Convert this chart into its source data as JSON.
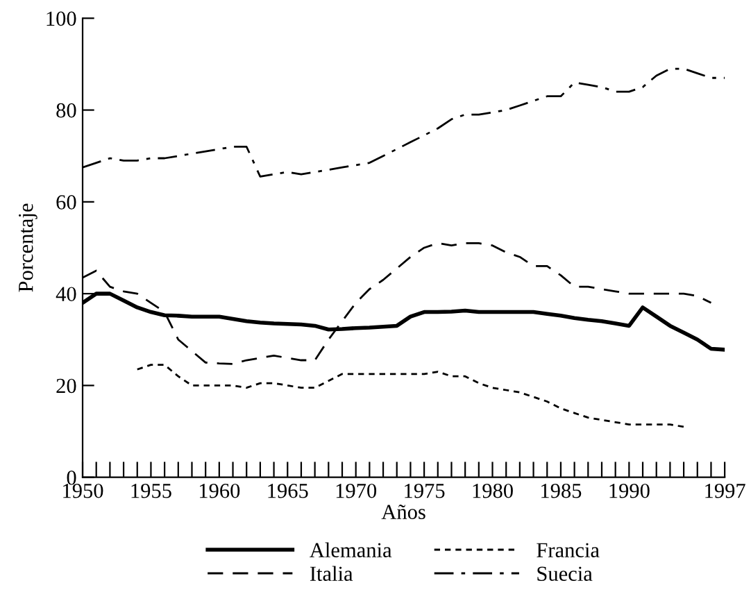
{
  "chart_data": {
    "type": "line",
    "xlabel": "Años",
    "ylabel": "Porcentaje",
    "x": [
      1950,
      1951,
      1952,
      1953,
      1954,
      1955,
      1956,
      1957,
      1958,
      1959,
      1960,
      1961,
      1962,
      1963,
      1964,
      1965,
      1966,
      1967,
      1968,
      1969,
      1970,
      1971,
      1972,
      1973,
      1974,
      1975,
      1976,
      1977,
      1978,
      1979,
      1980,
      1981,
      1982,
      1983,
      1984,
      1985,
      1986,
      1987,
      1988,
      1989,
      1990,
      1991,
      1992,
      1993,
      1994,
      1995,
      1996,
      1997
    ],
    "series": [
      {
        "name": "Alemania",
        "color": "#000000",
        "line_style": "solid",
        "values": [
          38,
          40,
          40,
          38.5,
          37,
          36,
          35.3,
          35.2,
          35,
          35,
          35,
          34.5,
          34,
          33.7,
          33.5,
          33.4,
          33.3,
          33,
          32.2,
          32.3,
          32.5,
          32.6,
          32.8,
          33,
          35,
          36,
          36,
          36.1,
          36.3,
          36,
          36,
          36,
          36,
          36,
          35.6,
          35.2,
          34.7,
          34.3,
          34,
          33.5,
          33,
          37,
          35,
          33,
          31.5,
          30,
          28,
          27.8
        ]
      },
      {
        "name": "Francia",
        "color": "#000000",
        "line_style": "dotted",
        "values": [
          null,
          null,
          null,
          null,
          23.5,
          24.5,
          24.5,
          22,
          20,
          20,
          20,
          20,
          19.5,
          20.5,
          20.5,
          20,
          19.5,
          19.5,
          21,
          22.5,
          22.5,
          22.5,
          22.5,
          22.5,
          22.5,
          22.5,
          23,
          22,
          22,
          20.5,
          19.5,
          19,
          18.5,
          17.5,
          16.5,
          15,
          14,
          13,
          12.5,
          12,
          11.5,
          11.5,
          11.5,
          11.5,
          11,
          null,
          null,
          null
        ]
      },
      {
        "name": "Italia",
        "color": "#000000",
        "line_style": "dashed",
        "values": [
          43.5,
          45,
          41.5,
          40.5,
          40,
          38,
          36,
          30,
          27.5,
          25,
          24.8,
          24.7,
          25.5,
          26,
          26.5,
          26,
          25.5,
          25.5,
          30,
          34,
          38,
          41,
          43,
          45.5,
          48,
          50,
          51,
          50.5,
          51,
          51,
          50.5,
          49,
          48,
          46,
          46,
          44,
          41.5,
          41.5,
          41,
          40.5,
          40,
          40,
          40,
          40,
          40,
          39.5,
          38,
          null
        ]
      },
      {
        "name": "Suecia",
        "color": "#000000",
        "line_style": "dashdot",
        "values": [
          67.5,
          68.5,
          69.5,
          69,
          69,
          69.5,
          69.5,
          70,
          70.5,
          71,
          71.5,
          72,
          72,
          65.5,
          66,
          66.5,
          66,
          66.5,
          67,
          67.5,
          68,
          68.5,
          70,
          71.5,
          73,
          74.5,
          76,
          78,
          79,
          79,
          79.5,
          80,
          81,
          82,
          83,
          83,
          86,
          85.5,
          85,
          84,
          84,
          85,
          87.5,
          89,
          89,
          88,
          87,
          87
        ]
      }
    ],
    "xlim": [
      1950,
      1997
    ],
    "ylim": [
      0,
      100
    ],
    "xticks": [
      1950,
      {
        "value": 1951,
        "label": null
      },
      {
        "value": 1952,
        "label": null
      },
      {
        "value": 1953,
        "label": null
      },
      {
        "value": 1954,
        "label": null
      },
      1955,
      {
        "value": 1956,
        "label": null
      },
      {
        "value": 1957,
        "label": null
      },
      {
        "value": 1958,
        "label": null
      },
      {
        "value": 1959,
        "label": null
      },
      1960,
      {
        "value": 1961,
        "label": null
      },
      {
        "value": 1962,
        "label": null
      },
      {
        "value": 1963,
        "label": null
      },
      {
        "value": 1964,
        "label": null
      },
      1965,
      {
        "value": 1966,
        "label": null
      },
      {
        "value": 1967,
        "label": null
      },
      {
        "value": 1968,
        "label": null
      },
      {
        "value": 1969,
        "label": null
      },
      1970,
      {
        "value": 1971,
        "label": null
      },
      {
        "value": 1972,
        "label": null
      },
      {
        "value": 1973,
        "label": null
      },
      {
        "value": 1974,
        "label": null
      },
      1975,
      {
        "value": 1976,
        "label": null
      },
      {
        "value": 1977,
        "label": null
      },
      {
        "value": 1978,
        "label": null
      },
      {
        "value": 1979,
        "label": null
      },
      1980,
      {
        "value": 1981,
        "label": null
      },
      {
        "value": 1982,
        "label": null
      },
      {
        "value": 1983,
        "label": null
      },
      {
        "value": 1984,
        "label": null
      },
      1985,
      {
        "value": 1986,
        "label": null
      },
      {
        "value": 1987,
        "label": null
      },
      {
        "value": 1988,
        "label": null
      },
      {
        "value": 1989,
        "label": null
      },
      1990,
      {
        "value": 1991,
        "label": null
      },
      {
        "value": 1992,
        "label": null
      },
      {
        "value": 1993,
        "label": null
      },
      {
        "value": 1994,
        "label": null
      },
      {
        "value": 1995,
        "label": null
      },
      {
        "value": 1996,
        "label": null
      },
      1997
    ],
    "yticks": [
      0,
      20,
      40,
      60,
      80,
      100
    ],
    "grid": false,
    "legend": "bottom",
    "marker": "none"
  }
}
